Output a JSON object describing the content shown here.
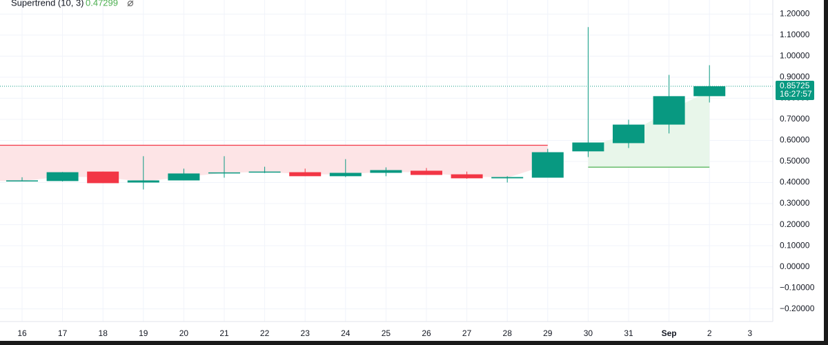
{
  "chart_data": {
    "type": "candlestick",
    "categories": [
      "16",
      "17",
      "18",
      "19",
      "20",
      "21",
      "22",
      "23",
      "24",
      "25",
      "26",
      "27",
      "28",
      "29",
      "30",
      "31",
      "Sep",
      "2",
      "3"
    ],
    "candles": [
      {
        "open": 0.405,
        "high": 0.425,
        "low": 0.405,
        "close": 0.41
      },
      {
        "open": 0.407,
        "high": 0.45,
        "low": 0.405,
        "close": 0.449
      },
      {
        "open": 0.452,
        "high": 0.452,
        "low": 0.397,
        "close": 0.397
      },
      {
        "open": 0.4,
        "high": 0.525,
        "low": 0.367,
        "close": 0.41
      },
      {
        "open": 0.41,
        "high": 0.466,
        "low": 0.41,
        "close": 0.443
      },
      {
        "open": 0.443,
        "high": 0.525,
        "low": 0.423,
        "close": 0.448
      },
      {
        "open": 0.449,
        "high": 0.475,
        "low": 0.445,
        "close": 0.452
      },
      {
        "open": 0.449,
        "high": 0.466,
        "low": 0.43,
        "close": 0.43
      },
      {
        "open": 0.43,
        "high": 0.511,
        "low": 0.426,
        "close": 0.446
      },
      {
        "open": 0.446,
        "high": 0.472,
        "low": 0.43,
        "close": 0.459
      },
      {
        "open": 0.456,
        "high": 0.469,
        "low": 0.436,
        "close": 0.436
      },
      {
        "open": 0.439,
        "high": 0.452,
        "low": 0.418,
        "close": 0.42
      },
      {
        "open": 0.42,
        "high": 0.43,
        "low": 0.4,
        "close": 0.426
      },
      {
        "open": 0.423,
        "high": 0.56,
        "low": 0.423,
        "close": 0.544
      },
      {
        "open": 0.548,
        "high": 1.138,
        "low": 0.521,
        "close": 0.59
      },
      {
        "open": 0.587,
        "high": 0.698,
        "low": 0.564,
        "close": 0.675
      },
      {
        "open": 0.675,
        "high": 0.911,
        "low": 0.633,
        "close": 0.81
      },
      {
        "open": 0.81,
        "high": 0.957,
        "low": 0.78,
        "close": 0.857
      },
      null
    ],
    "up_color": "#089981",
    "down_color": "#f23645",
    "supertrend": {
      "name": "Supertrend (10, 3)",
      "lines": [
        {
          "color": "#f23645",
          "fill": "#fde4e6",
          "values": [
            0.577,
            0.577,
            0.577,
            0.577,
            0.577,
            0.577,
            0.577,
            0.577,
            0.577,
            0.577,
            0.577,
            0.577,
            0.577,
            0.577,
            null,
            null,
            null,
            null,
            null
          ]
        },
        {
          "color": "#4caf50",
          "fill": "#e8f6ea",
          "values": [
            null,
            null,
            null,
            null,
            null,
            null,
            null,
            null,
            null,
            null,
            null,
            null,
            null,
            null,
            0.47299,
            0.47299,
            0.47299,
            0.47299,
            null
          ]
        }
      ]
    },
    "last_price": 0.85725,
    "countdown": "16:27:57",
    "ylim": [
      -0.26,
      1.26
    ],
    "yticks": [
      {
        "value": 1.2,
        "label": "1.20000"
      },
      {
        "value": 1.1,
        "label": "1.10000"
      },
      {
        "value": 1.0,
        "label": "1.00000"
      },
      {
        "value": 0.9,
        "label": "0.90000"
      },
      {
        "value": 0.8,
        "label": "0.80000"
      },
      {
        "value": 0.7,
        "label": "0.70000"
      },
      {
        "value": 0.6,
        "label": "0.60000"
      },
      {
        "value": 0.5,
        "label": "0.50000"
      },
      {
        "value": 0.4,
        "label": "0.40000"
      },
      {
        "value": 0.3,
        "label": "0.30000"
      },
      {
        "value": 0.2,
        "label": "0.20000"
      },
      {
        "value": 0.1,
        "label": "0.10000"
      },
      {
        "value": 0.0,
        "label": "0.00000"
      },
      {
        "value": -0.1,
        "label": "−0.10000"
      },
      {
        "value": -0.2,
        "label": "−0.20000"
      }
    ],
    "grid": true
  }
}
